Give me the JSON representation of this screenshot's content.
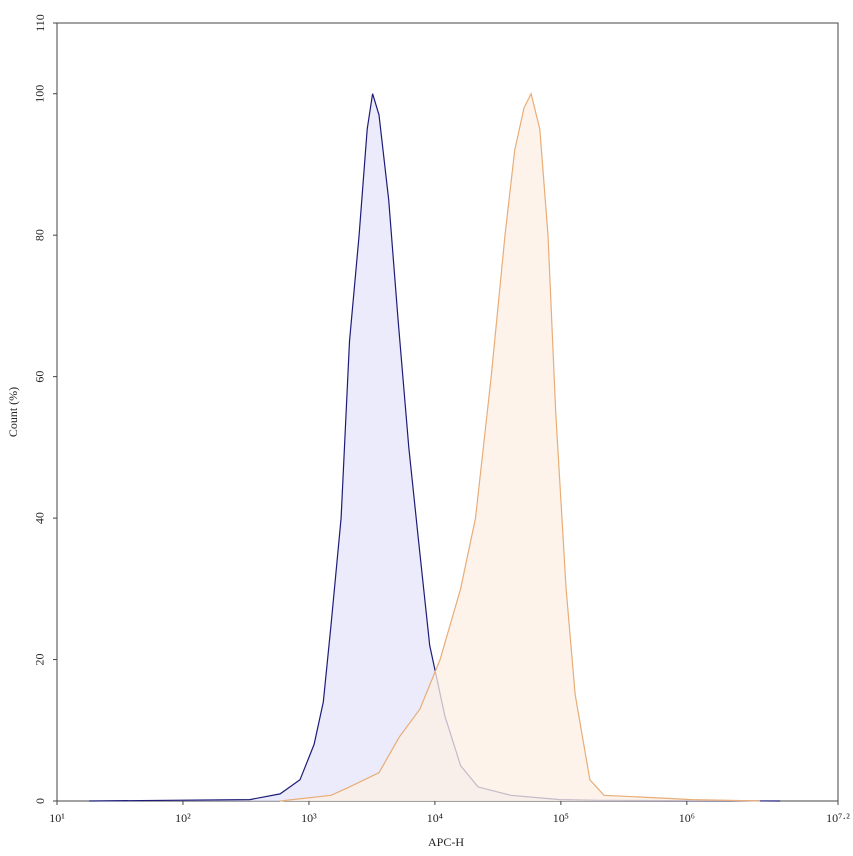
{
  "chart_data": {
    "type": "area",
    "xlabel": "APC-H",
    "ylabel": "Count (%)",
    "xscale": "log",
    "xlim": [
      10,
      15848932
    ],
    "xticks": [
      {
        "value": 10,
        "label": "10¹"
      },
      {
        "value": 100,
        "label": "10²"
      },
      {
        "value": 1000,
        "label": "10³"
      },
      {
        "value": 10000,
        "label": "10⁴"
      },
      {
        "value": 100000,
        "label": "10⁵"
      },
      {
        "value": 1000000,
        "label": "10⁶"
      },
      {
        "value": 15848932,
        "label": "10⁷·²"
      }
    ],
    "ylim": [
      0,
      110
    ],
    "yticks": [
      0,
      20,
      40,
      60,
      80,
      100,
      110
    ],
    "grid": false,
    "series": [
      {
        "color": "#1c1c78",
        "fill": "#e4e4fb",
        "x": [
          18,
          340,
          590,
          850,
          1100,
          1300,
          1500,
          1800,
          2100,
          2500,
          2900,
          3200,
          3600,
          4300,
          5100,
          6200,
          7400,
          9100,
          12000,
          16000,
          22000,
          40000,
          98000,
          200000,
          5500000
        ],
        "values": [
          0,
          0.2,
          1,
          3,
          8,
          14,
          25,
          40,
          65,
          80,
          95,
          100,
          97,
          85,
          68,
          50,
          37,
          22,
          12,
          5,
          2,
          0.8,
          0.2,
          0.1,
          0
        ]
      },
      {
        "color": "#e8ad78",
        "fill": "#fcefe4",
        "x": [
          590,
          1500,
          2100,
          3600,
          5200,
          7600,
          11000,
          16000,
          21000,
          28000,
          36000,
          43000,
          51000,
          58000,
          68000,
          79000,
          91000,
          110000,
          130000,
          170000,
          220000,
          510000,
          1100000,
          3800000
        ],
        "values": [
          0,
          0.8,
          2,
          4,
          9,
          13,
          20,
          30,
          40,
          60,
          80,
          92,
          98,
          100,
          95,
          80,
          55,
          30,
          15,
          3,
          0.8,
          0.5,
          0.2,
          0
        ]
      }
    ]
  }
}
